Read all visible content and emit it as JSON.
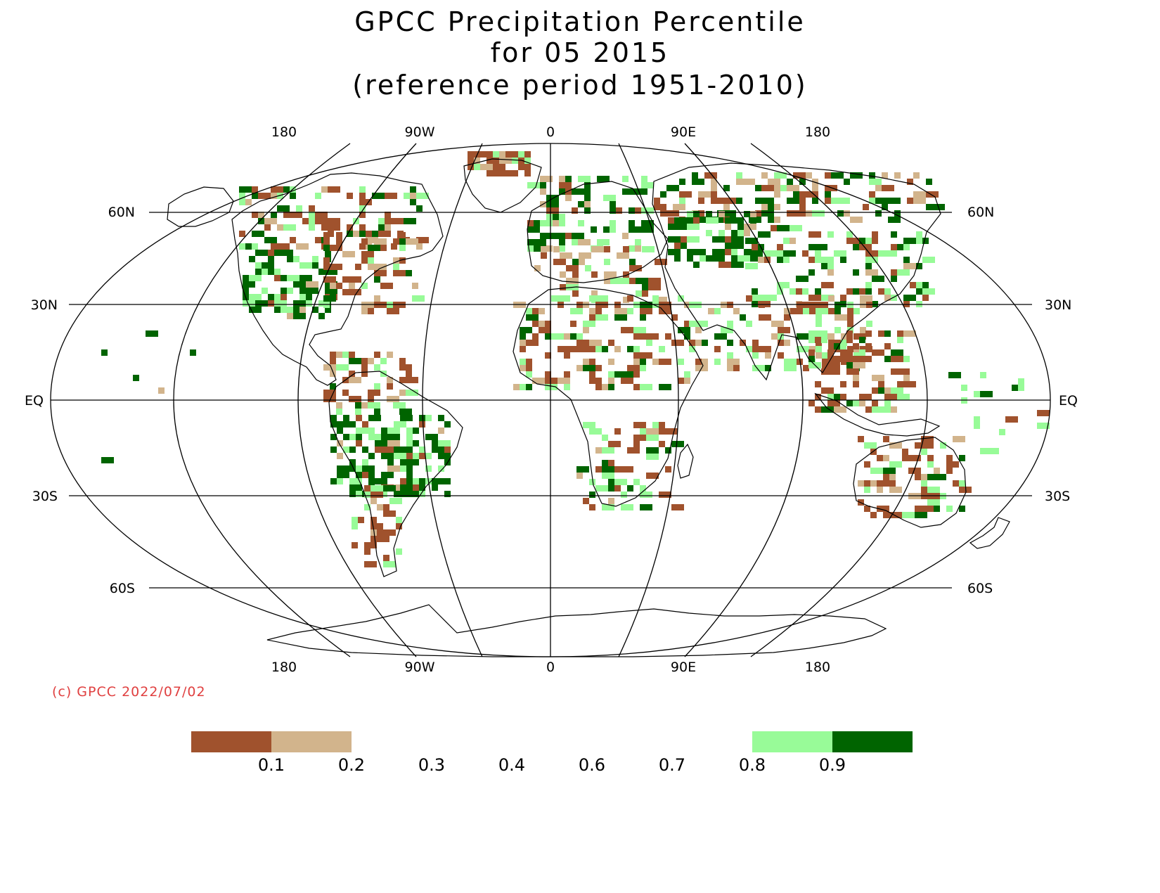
{
  "title": {
    "line1": "GPCC Precipitation Percentile",
    "line2": "for 05 2015",
    "line3": "(reference period 1951-2010)"
  },
  "credit": "(c) GPCC 2022/07/02",
  "map": {
    "projection": "Robinson",
    "lon_labels_top": [
      "180",
      "90W",
      "0",
      "90E",
      "180"
    ],
    "lon_labels_bottom": [
      "180",
      "90W",
      "0",
      "90E",
      "180"
    ],
    "lat_labels": [
      "60N",
      "30N",
      "EQ",
      "30S",
      "60S"
    ],
    "land_outline_color": "#000000",
    "grid_color": "#000000"
  },
  "legend": {
    "colors": [
      "#a0522d",
      "#d2b48c",
      "#ffffff",
      "#ffffff",
      "#ffffff",
      "#ffffff",
      "#ffffff",
      "#98fb98",
      "#006400"
    ],
    "labels": [
      "0.1",
      "0.2",
      "0.3",
      "0.4",
      "0.6",
      "0.7",
      "0.8",
      "0.9"
    ]
  },
  "colors": {
    "very_dry": "#a0522d",
    "dry": "#d2b48c",
    "wet": "#98fb98",
    "very_wet": "#006400",
    "credit": "#e04040"
  }
}
